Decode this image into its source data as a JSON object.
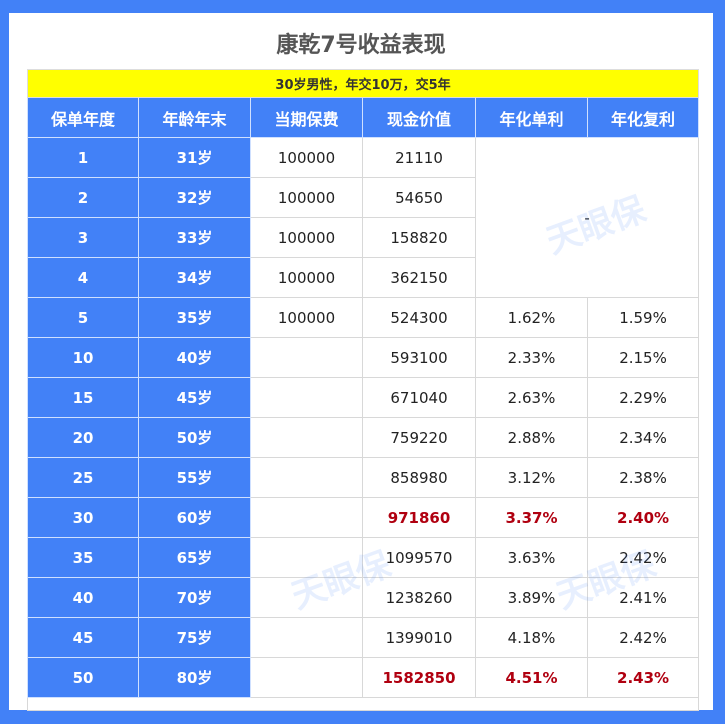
{
  "title": "康乾7号收益表现",
  "banner": "30岁男性，年交10万，交5年",
  "headers": [
    "保单年度",
    "年龄年末",
    "当期保费",
    "现金价值",
    "年化单利",
    "年化复利"
  ],
  "merged_placeholder": "-",
  "rows": [
    {
      "year": "1",
      "age": "31岁",
      "premium": "100000",
      "cash": "21110"
    },
    {
      "year": "2",
      "age": "32岁",
      "premium": "100000",
      "cash": "54650"
    },
    {
      "year": "3",
      "age": "33岁",
      "premium": "100000",
      "cash": "158820"
    },
    {
      "year": "4",
      "age": "34岁",
      "premium": "100000",
      "cash": "362150"
    },
    {
      "year": "5",
      "age": "35岁",
      "premium": "100000",
      "cash": "524300",
      "simple": "1.62%",
      "compound": "1.59%"
    },
    {
      "year": "10",
      "age": "40岁",
      "premium": "",
      "cash": "593100",
      "simple": "2.33%",
      "compound": "2.15%"
    },
    {
      "year": "15",
      "age": "45岁",
      "premium": "",
      "cash": "671040",
      "simple": "2.63%",
      "compound": "2.29%"
    },
    {
      "year": "20",
      "age": "50岁",
      "premium": "",
      "cash": "759220",
      "simple": "2.88%",
      "compound": "2.34%"
    },
    {
      "year": "25",
      "age": "55岁",
      "premium": "",
      "cash": "858980",
      "simple": "3.12%",
      "compound": "2.38%"
    },
    {
      "year": "30",
      "age": "60岁",
      "premium": "",
      "cash": "971860",
      "simple": "3.37%",
      "compound": "2.40%",
      "highlight": true
    },
    {
      "year": "35",
      "age": "65岁",
      "premium": "",
      "cash": "1099570",
      "simple": "3.63%",
      "compound": "2.42%"
    },
    {
      "year": "40",
      "age": "70岁",
      "premium": "",
      "cash": "1238260",
      "simple": "3.89%",
      "compound": "2.41%"
    },
    {
      "year": "45",
      "age": "75岁",
      "premium": "",
      "cash": "1399010",
      "simple": "4.18%",
      "compound": "2.42%"
    },
    {
      "year": "50",
      "age": "80岁",
      "premium": "",
      "cash": "1582850",
      "simple": "4.51%",
      "compound": "2.43%",
      "highlight": true
    }
  ],
  "watermark": "天眼保",
  "colors": {
    "header_blue": "#4281f7",
    "banner_yellow": "#ffff00",
    "highlight_red": "#b00010"
  }
}
